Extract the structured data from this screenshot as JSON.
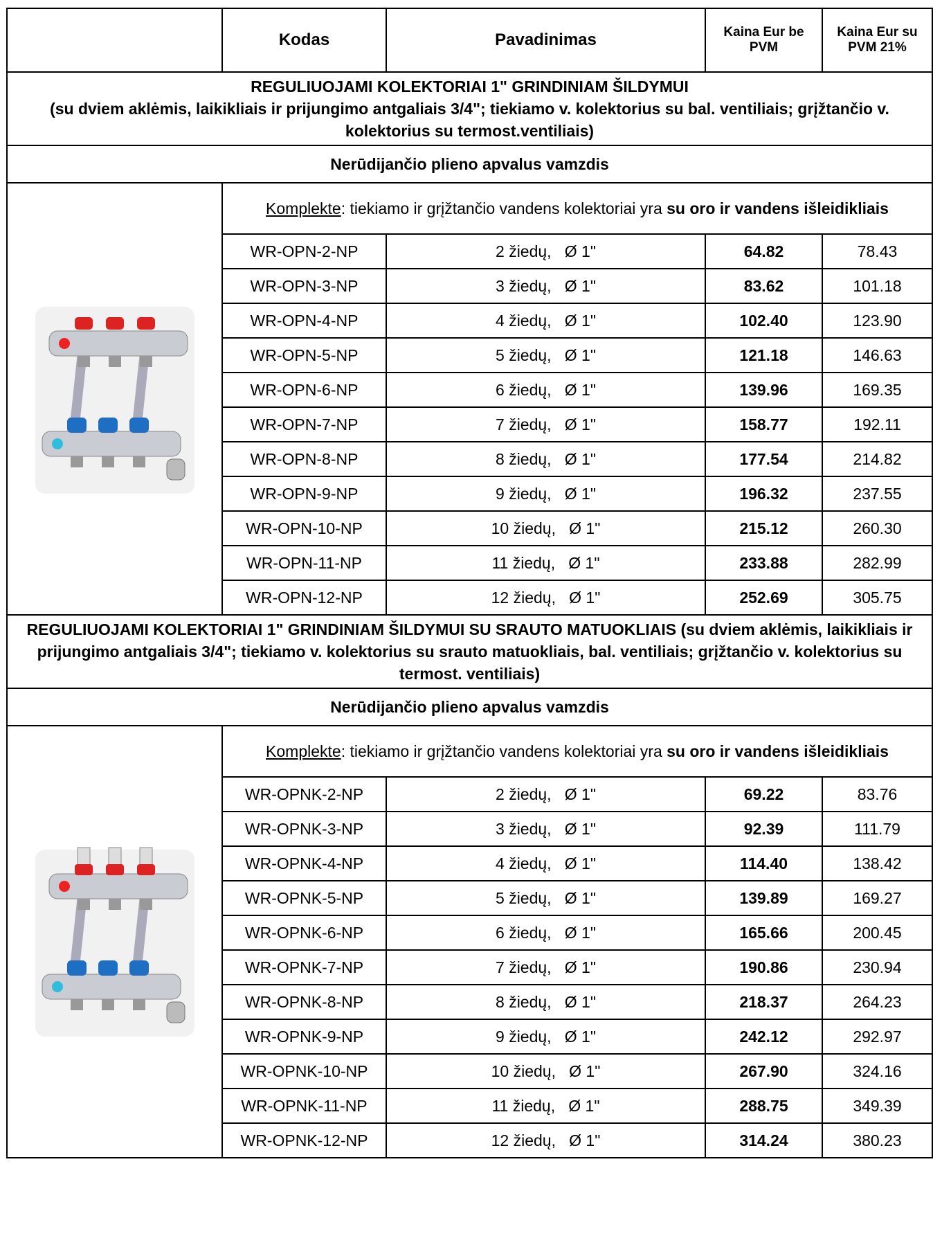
{
  "header": {
    "columns": [
      "Kodas",
      "Pavadinimas",
      "Kaina Eur be PVM",
      "Kaina Eur su PVM 21%"
    ]
  },
  "sections": [
    {
      "title": "REGULIUOJAMI  KOLEKTORIAI 1\" GRINDINIAM ŠILDYMUI",
      "description": "(su dviem aklėmis, laikikliais ir prijungimo antgaliais 3/4\"; tiekiamo v. kolektorius su bal. ventiliais; grįžtančio v. kolektorius su termost.ventiliais)",
      "subheading": "Nerūdijančio plieno apvalus vamzdis",
      "kit": {
        "label": "Komplekte",
        "text": ": tiekiamo ir grįžtančio vandens kolektoriai yra ",
        "bold": "su oro ir vandens išleidikliais"
      },
      "rows": [
        [
          "WR-OPN-2-NP",
          "2 žiedų,   Ø 1\"",
          "64.82",
          "78.43"
        ],
        [
          "WR-OPN-3-NP",
          "3 žiedų,   Ø 1\"",
          "83.62",
          "101.18"
        ],
        [
          "WR-OPN-4-NP",
          "4 žiedų,   Ø 1\"",
          "102.40",
          "123.90"
        ],
        [
          "WR-OPN-5-NP",
          "5 žiedų,   Ø 1\"",
          "121.18",
          "146.63"
        ],
        [
          "WR-OPN-6-NP",
          "6 žiedų,   Ø 1\"",
          "139.96",
          "169.35"
        ],
        [
          "WR-OPN-7-NP",
          "7 žiedų,   Ø 1\"",
          "158.77",
          "192.11"
        ],
        [
          "WR-OPN-8-NP",
          "8 žiedų,   Ø 1\"",
          "177.54",
          "214.82"
        ],
        [
          "WR-OPN-9-NP",
          "9 žiedų,   Ø 1\"",
          "196.32",
          "237.55"
        ],
        [
          "WR-OPN-10-NP",
          "10 žiedų,   Ø 1\"",
          "215.12",
          "260.30"
        ],
        [
          "WR-OPN-11-NP",
          "11 žiedų,   Ø 1\"",
          "233.88",
          "282.99"
        ],
        [
          "WR-OPN-12-NP",
          "12 žiedų,   Ø 1\"",
          "252.69",
          "305.75"
        ]
      ]
    },
    {
      "title": "REGULIUOJAMI KOLEKTORIAI 1\" GRINDINIAM ŠILDYMUI SU SRAUTO MATUOKLIAIS   (su dviem aklėmis, laikikliais ir prijungimo antgaliais 3/4\"; tiekiamo v. kolektorius su srauto matuokliais, bal. ventiliais; grįžtančio v. kolektorius su termost. ventiliais)",
      "subheading": "Nerūdijančio plieno apvalus vamzdis",
      "kit": {
        "label": "Komplekte",
        "text": ": tiekiamo ir grįžtančio vandens kolektoriai yra ",
        "bold": "su oro ir vandens išleidikliais"
      },
      "rows": [
        [
          "WR-OPNK-2-NP",
          "2 žiedų,   Ø 1\"",
          "69.22",
          "83.76"
        ],
        [
          "WR-OPNK-3-NP",
          "3 žiedų,   Ø 1\"",
          "92.39",
          "111.79"
        ],
        [
          "WR-OPNK-4-NP",
          "4 žiedų,   Ø 1\"",
          "114.40",
          "138.42"
        ],
        [
          "WR-OPNK-5-NP",
          "5 žiedų,   Ø 1\"",
          "139.89",
          "169.27"
        ],
        [
          "WR-OPNK-6-NP",
          "6 žiedų,   Ø 1\"",
          "165.66",
          "200.45"
        ],
        [
          "WR-OPNK-7-NP",
          "7 žiedų,   Ø 1\"",
          "190.86",
          "230.94"
        ],
        [
          "WR-OPNK-8-NP",
          "8 žiedų,   Ø 1\"",
          "218.37",
          "264.23"
        ],
        [
          "WR-OPNK-9-NP",
          "9 žiedų,   Ø 1\"",
          "242.12",
          "292.97"
        ],
        [
          "WR-OPNK-10-NP",
          "10 žiedų,   Ø 1\"",
          "267.90",
          "324.16"
        ],
        [
          "WR-OPNK-11-NP",
          "11 žiedų,   Ø 1\"",
          "288.75",
          "349.39"
        ],
        [
          "WR-OPNK-12-NP",
          "12 žiedų,   Ø 1\"",
          "314.24",
          "380.23"
        ]
      ]
    }
  ]
}
